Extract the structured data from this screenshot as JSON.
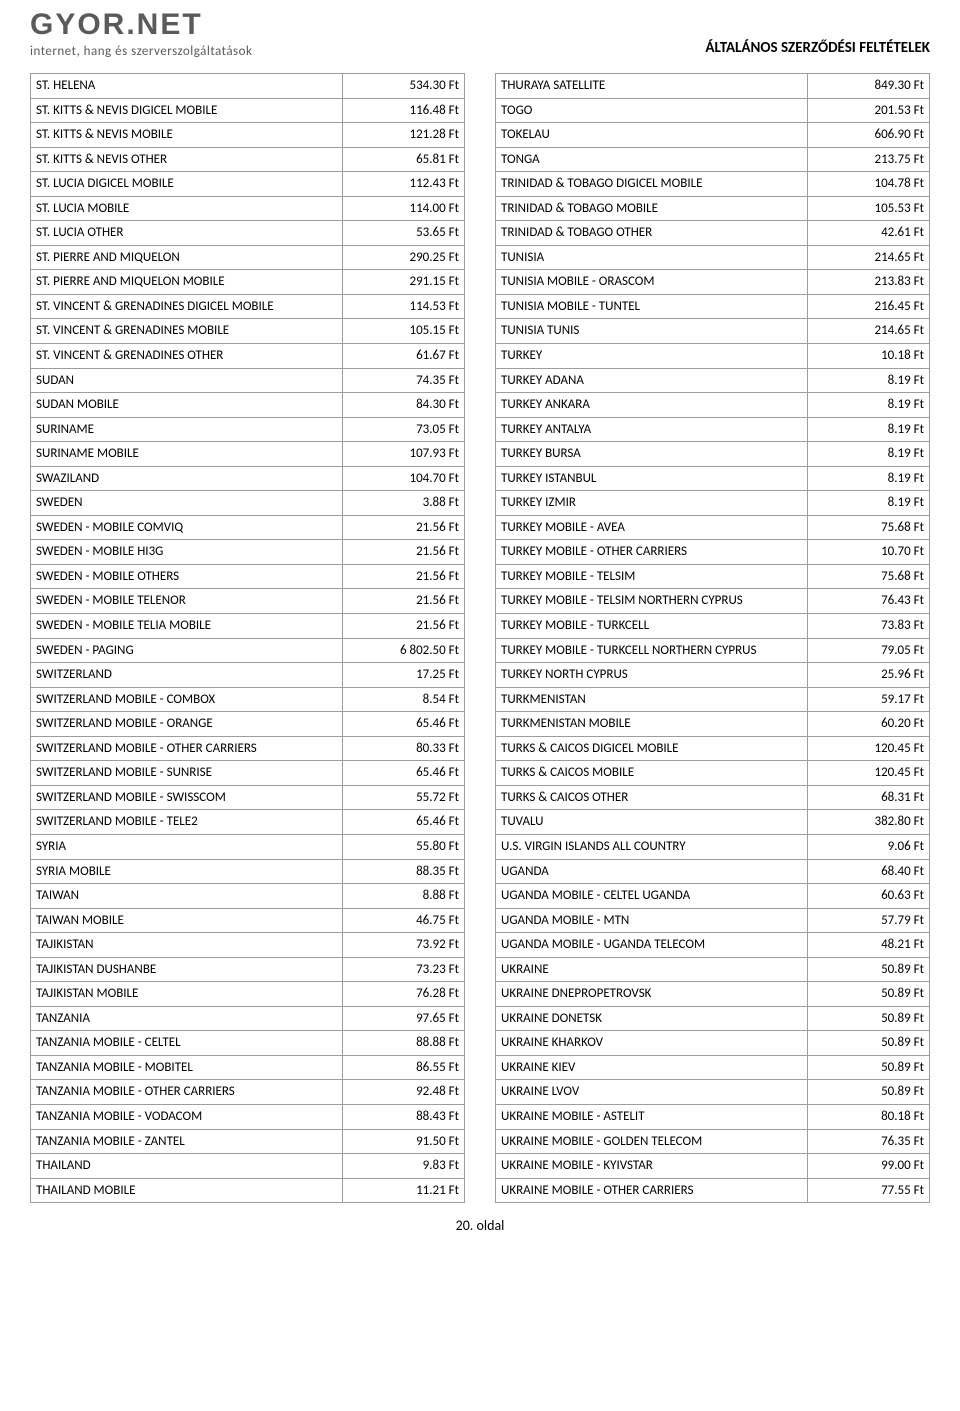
{
  "brand": {
    "logo": "GYOR.NET",
    "tagline": "internet, hang és szerverszolgáltatások"
  },
  "doc": {
    "title": "ÁLTALÁNOS SZERZŐDÉSI FELTÉTELEK",
    "page_label": "20. oldal"
  },
  "left": [
    {
      "name": "ST. HELENA",
      "price": "534.30 Ft"
    },
    {
      "name": "ST. KITTS & NEVIS DIGICEL MOBILE",
      "price": "116.48 Ft"
    },
    {
      "name": "ST. KITTS & NEVIS MOBILE",
      "price": "121.28 Ft"
    },
    {
      "name": "ST. KITTS & NEVIS OTHER",
      "price": "65.81 Ft"
    },
    {
      "name": "ST. LUCIA DIGICEL MOBILE",
      "price": "112.43 Ft"
    },
    {
      "name": "ST. LUCIA MOBILE",
      "price": "114.00 Ft"
    },
    {
      "name": "ST. LUCIA OTHER",
      "price": "53.65 Ft"
    },
    {
      "name": "ST. PIERRE AND MIQUELON",
      "price": "290.25 Ft"
    },
    {
      "name": "ST. PIERRE AND MIQUELON MOBILE",
      "price": "291.15 Ft"
    },
    {
      "name": "ST. VINCENT & GRENADINES DIGICEL MOBILE",
      "price": "114.53 Ft"
    },
    {
      "name": "ST. VINCENT & GRENADINES MOBILE",
      "price": "105.15 Ft"
    },
    {
      "name": "ST. VINCENT & GRENADINES OTHER",
      "price": "61.67 Ft"
    },
    {
      "name": "SUDAN",
      "price": "74.35 Ft"
    },
    {
      "name": "SUDAN MOBILE",
      "price": "84.30 Ft"
    },
    {
      "name": "SURINAME",
      "price": "73.05 Ft"
    },
    {
      "name": "SURINAME MOBILE",
      "price": "107.93 Ft"
    },
    {
      "name": "SWAZILAND",
      "price": "104.70 Ft"
    },
    {
      "name": "SWEDEN",
      "price": "3.88 Ft"
    },
    {
      "name": "SWEDEN - MOBILE COMVIQ",
      "price": "21.56 Ft"
    },
    {
      "name": "SWEDEN - MOBILE HI3G",
      "price": "21.56 Ft"
    },
    {
      "name": "SWEDEN - MOBILE OTHERS",
      "price": "21.56 Ft"
    },
    {
      "name": "SWEDEN - MOBILE TELENOR",
      "price": "21.56 Ft"
    },
    {
      "name": "SWEDEN - MOBILE TELIA MOBILE",
      "price": "21.56 Ft"
    },
    {
      "name": "SWEDEN - PAGING",
      "price": "6 802.50 Ft"
    },
    {
      "name": "SWITZERLAND",
      "price": "17.25 Ft"
    },
    {
      "name": "SWITZERLAND MOBILE - COMBOX",
      "price": "8.54 Ft"
    },
    {
      "name": "SWITZERLAND MOBILE - ORANGE",
      "price": "65.46 Ft"
    },
    {
      "name": "SWITZERLAND MOBILE - OTHER CARRIERS",
      "price": "80.33 Ft"
    },
    {
      "name": "SWITZERLAND MOBILE - SUNRISE",
      "price": "65.46 Ft"
    },
    {
      "name": "SWITZERLAND MOBILE - SWISSCOM",
      "price": "55.72 Ft"
    },
    {
      "name": "SWITZERLAND MOBILE - TELE2",
      "price": "65.46 Ft"
    },
    {
      "name": "SYRIA",
      "price": "55.80 Ft"
    },
    {
      "name": "SYRIA MOBILE",
      "price": "88.35 Ft"
    },
    {
      "name": "TAIWAN",
      "price": "8.88 Ft"
    },
    {
      "name": "TAIWAN MOBILE",
      "price": "46.75 Ft"
    },
    {
      "name": "TAJIKISTAN",
      "price": "73.92 Ft"
    },
    {
      "name": "TAJIKISTAN DUSHANBE",
      "price": "73.23 Ft"
    },
    {
      "name": "TAJIKISTAN MOBILE",
      "price": "76.28 Ft"
    },
    {
      "name": "TANZANIA",
      "price": "97.65 Ft"
    },
    {
      "name": "TANZANIA MOBILE - CELTEL",
      "price": "88.88 Ft"
    },
    {
      "name": "TANZANIA MOBILE - MOBITEL",
      "price": "86.55 Ft"
    },
    {
      "name": "TANZANIA MOBILE - OTHER CARRIERS",
      "price": "92.48 Ft"
    },
    {
      "name": "TANZANIA MOBILE - VODACOM",
      "price": "88.43 Ft"
    },
    {
      "name": "TANZANIA MOBILE - ZANTEL",
      "price": "91.50 Ft"
    },
    {
      "name": "THAILAND",
      "price": "9.83 Ft"
    },
    {
      "name": "THAILAND MOBILE",
      "price": "11.21 Ft"
    }
  ],
  "right": [
    {
      "name": "THURAYA SATELLITE",
      "price": "849.30 Ft"
    },
    {
      "name": "TOGO",
      "price": "201.53 Ft"
    },
    {
      "name": "TOKELAU",
      "price": "606.90 Ft"
    },
    {
      "name": "TONGA",
      "price": "213.75 Ft"
    },
    {
      "name": "TRINIDAD & TOBAGO DIGICEL MOBILE",
      "price": "104.78 Ft"
    },
    {
      "name": "TRINIDAD & TOBAGO MOBILE",
      "price": "105.53 Ft"
    },
    {
      "name": "TRINIDAD & TOBAGO OTHER",
      "price": "42.61 Ft"
    },
    {
      "name": "TUNISIA",
      "price": "214.65 Ft"
    },
    {
      "name": "TUNISIA MOBILE - ORASCOM",
      "price": "213.83 Ft"
    },
    {
      "name": "TUNISIA MOBILE - TUNTEL",
      "price": "216.45 Ft"
    },
    {
      "name": "TUNISIA TUNIS",
      "price": "214.65 Ft"
    },
    {
      "name": "TURKEY",
      "price": "10.18 Ft"
    },
    {
      "name": "TURKEY ADANA",
      "price": "8.19 Ft"
    },
    {
      "name": "TURKEY ANKARA",
      "price": "8.19 Ft"
    },
    {
      "name": "TURKEY ANTALYA",
      "price": "8.19 Ft"
    },
    {
      "name": "TURKEY BURSA",
      "price": "8.19 Ft"
    },
    {
      "name": "TURKEY ISTANBUL",
      "price": "8.19 Ft"
    },
    {
      "name": "TURKEY IZMIR",
      "price": "8.19 Ft"
    },
    {
      "name": "TURKEY MOBILE - AVEA",
      "price": "75.68 Ft"
    },
    {
      "name": "TURKEY MOBILE - OTHER CARRIERS",
      "price": "10.70 Ft"
    },
    {
      "name": "TURKEY MOBILE - TELSIM",
      "price": "75.68 Ft"
    },
    {
      "name": "TURKEY MOBILE - TELSIM NORTHERN CYPRUS",
      "price": "76.43 Ft"
    },
    {
      "name": "TURKEY MOBILE - TURKCELL",
      "price": "73.83 Ft"
    },
    {
      "name": "TURKEY MOBILE - TURKCELL NORTHERN CYPRUS",
      "price": "79.05 Ft"
    },
    {
      "name": "TURKEY NORTH CYPRUS",
      "price": "25.96 Ft"
    },
    {
      "name": "TURKMENISTAN",
      "price": "59.17 Ft"
    },
    {
      "name": "TURKMENISTAN MOBILE",
      "price": "60.20 Ft"
    },
    {
      "name": "TURKS & CAICOS DIGICEL MOBILE",
      "price": "120.45 Ft"
    },
    {
      "name": "TURKS & CAICOS MOBILE",
      "price": "120.45 Ft"
    },
    {
      "name": "TURKS & CAICOS OTHER",
      "price": "68.31 Ft"
    },
    {
      "name": "TUVALU",
      "price": "382.80 Ft"
    },
    {
      "name": "U.S. VIRGIN ISLANDS ALL COUNTRY",
      "price": "9.06 Ft"
    },
    {
      "name": "UGANDA",
      "price": "68.40 Ft"
    },
    {
      "name": "UGANDA MOBILE - CELTEL UGANDA",
      "price": "60.63 Ft"
    },
    {
      "name": "UGANDA MOBILE - MTN",
      "price": "57.79 Ft"
    },
    {
      "name": "UGANDA MOBILE - UGANDA TELECOM",
      "price": "48.21 Ft"
    },
    {
      "name": "UKRAINE",
      "price": "50.89 Ft"
    },
    {
      "name": "UKRAINE DNEPROPETROVSK",
      "price": "50.89 Ft"
    },
    {
      "name": "UKRAINE DONETSK",
      "price": "50.89 Ft"
    },
    {
      "name": "UKRAINE KHARKOV",
      "price": "50.89 Ft"
    },
    {
      "name": "UKRAINE KIEV",
      "price": "50.89 Ft"
    },
    {
      "name": "UKRAINE LVOV",
      "price": "50.89 Ft"
    },
    {
      "name": "UKRAINE MOBILE - ASTELIT",
      "price": "80.18 Ft"
    },
    {
      "name": "UKRAINE MOBILE - GOLDEN TELECOM",
      "price": "76.35 Ft"
    },
    {
      "name": "UKRAINE MOBILE - KYIVSTAR",
      "price": "99.00 Ft"
    },
    {
      "name": "UKRAINE MOBILE - OTHER CARRIERS",
      "price": "77.55 Ft"
    }
  ]
}
